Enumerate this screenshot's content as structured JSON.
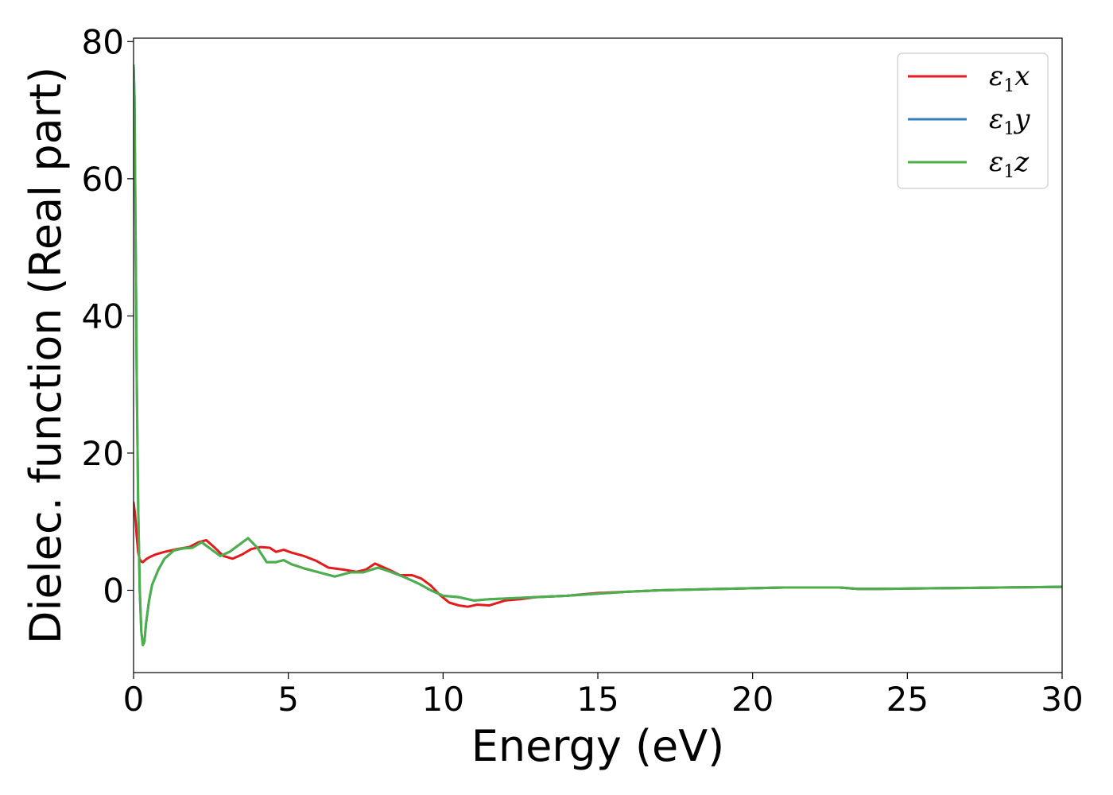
{
  "chart_data": {
    "type": "line",
    "title": "",
    "xlabel": "Energy (eV)",
    "ylabel": "Dielec. function (Real part)",
    "xlim": [
      0,
      30
    ],
    "ylim": [
      -12,
      80.5
    ],
    "xticks": [
      0,
      5,
      10,
      15,
      20,
      25,
      30
    ],
    "yticks": [
      0,
      20,
      40,
      60,
      80
    ],
    "grid": false,
    "legend_position": "top-right",
    "series": [
      {
        "name": "ε1x",
        "legend_main": "ε",
        "legend_sub": "1",
        "legend_tail": "x",
        "color": "#e41a1c",
        "x": [
          0,
          0.05,
          0.1,
          0.15,
          0.2,
          0.25,
          0.3,
          0.4,
          0.5,
          0.7,
          1.0,
          1.4,
          1.8,
          2.1,
          2.35,
          2.6,
          2.9,
          3.2,
          3.5,
          3.8,
          4.1,
          4.4,
          4.6,
          4.85,
          5.1,
          5.5,
          5.9,
          6.3,
          6.8,
          7.2,
          7.5,
          7.8,
          8.0,
          8.3,
          8.6,
          9.0,
          9.3,
          9.6,
          9.9,
          10.2,
          10.5,
          10.8,
          11.1,
          11.5,
          12.0,
          12.5,
          13.0,
          13.5,
          14.0,
          15.0,
          16.0,
          17.0,
          18.0,
          19.0,
          20.0,
          21.0,
          22.0,
          22.8,
          23.4,
          24.0,
          25.0,
          26.0,
          27.0,
          28.0,
          29.0,
          30.0
        ],
        "y": [
          12.8,
          11.0,
          8.0,
          5.5,
          4.5,
          4.2,
          4.1,
          4.5,
          4.8,
          5.2,
          5.6,
          6.0,
          6.3,
          7.0,
          7.3,
          6.3,
          5.0,
          4.6,
          5.2,
          6.0,
          6.3,
          6.2,
          5.6,
          5.9,
          5.5,
          5.0,
          4.3,
          3.3,
          3.0,
          2.7,
          3.0,
          3.9,
          3.5,
          2.9,
          2.2,
          2.2,
          1.7,
          0.7,
          -0.7,
          -1.8,
          -2.2,
          -2.4,
          -2.1,
          -2.2,
          -1.5,
          -1.3,
          -1.0,
          -0.9,
          -0.8,
          -0.4,
          -0.2,
          0.0,
          0.1,
          0.2,
          0.3,
          0.4,
          0.4,
          0.4,
          0.2,
          0.2,
          0.25,
          0.3,
          0.35,
          0.4,
          0.45,
          0.5
        ]
      },
      {
        "name": "ε1y",
        "legend_main": "ε",
        "legend_sub": "1",
        "legend_tail": "y",
        "color": "#377eb8",
        "x": [
          0,
          0.03,
          0.06,
          0.1,
          0.15,
          0.2,
          0.25,
          0.3,
          0.35,
          0.4,
          0.5,
          0.6,
          0.8,
          1.0,
          1.3,
          1.6,
          1.9,
          2.2,
          2.5,
          2.8,
          3.1,
          3.4,
          3.7,
          4.0,
          4.3,
          4.6,
          4.85,
          5.1,
          5.5,
          6.0,
          6.5,
          7.0,
          7.4,
          7.9,
          8.3,
          8.7,
          9.2,
          9.6,
          10.0,
          10.5,
          11.0,
          11.5,
          12.0,
          13.0,
          14.0,
          15.0,
          16.0,
          17.0,
          18.0,
          19.0,
          20.0,
          21.0,
          22.0,
          22.8,
          23.4,
          24.0,
          25.0,
          26.0,
          27.0,
          28.0,
          29.0,
          30.0
        ],
        "y": [
          76.5,
          72.0,
          55.0,
          32.0,
          12.0,
          0.0,
          -6.0,
          -8.0,
          -7.5,
          -5.0,
          -1.5,
          0.8,
          3.0,
          4.6,
          5.8,
          6.1,
          6.2,
          7.0,
          6.0,
          5.0,
          5.6,
          6.6,
          7.6,
          6.2,
          4.1,
          4.1,
          4.4,
          3.8,
          3.2,
          2.6,
          2.0,
          2.6,
          2.6,
          3.3,
          2.7,
          2.0,
          1.0,
          0.0,
          -0.8,
          -1.0,
          -1.5,
          -1.3,
          -1.2,
          -1.0,
          -0.8,
          -0.5,
          -0.2,
          0.0,
          0.1,
          0.2,
          0.3,
          0.4,
          0.4,
          0.4,
          0.2,
          0.2,
          0.25,
          0.3,
          0.35,
          0.4,
          0.45,
          0.5
        ]
      },
      {
        "name": "ε1z",
        "legend_main": "ε",
        "legend_sub": "1",
        "legend_tail": "z",
        "color": "#4daf4a",
        "x": [
          0,
          0.03,
          0.06,
          0.1,
          0.15,
          0.2,
          0.25,
          0.3,
          0.35,
          0.4,
          0.5,
          0.6,
          0.8,
          1.0,
          1.3,
          1.6,
          1.9,
          2.2,
          2.5,
          2.8,
          3.1,
          3.4,
          3.7,
          4.0,
          4.3,
          4.6,
          4.85,
          5.1,
          5.5,
          6.0,
          6.5,
          7.0,
          7.4,
          7.9,
          8.3,
          8.7,
          9.2,
          9.6,
          10.0,
          10.5,
          11.0,
          11.5,
          12.0,
          13.0,
          14.0,
          15.0,
          16.0,
          17.0,
          18.0,
          19.0,
          20.0,
          21.0,
          22.0,
          22.8,
          23.4,
          24.0,
          25.0,
          26.0,
          27.0,
          28.0,
          29.0,
          30.0
        ],
        "y": [
          76.5,
          72.0,
          55.0,
          32.0,
          12.0,
          0.0,
          -6.0,
          -8.0,
          -7.5,
          -5.0,
          -1.5,
          0.8,
          3.0,
          4.6,
          5.8,
          6.1,
          6.2,
          7.0,
          6.0,
          5.0,
          5.6,
          6.6,
          7.6,
          6.2,
          4.1,
          4.1,
          4.4,
          3.8,
          3.2,
          2.6,
          2.0,
          2.6,
          2.6,
          3.3,
          2.7,
          2.0,
          1.0,
          0.0,
          -0.8,
          -1.0,
          -1.5,
          -1.3,
          -1.2,
          -1.0,
          -0.8,
          -0.5,
          -0.2,
          0.0,
          0.1,
          0.2,
          0.3,
          0.4,
          0.4,
          0.4,
          0.2,
          0.2,
          0.25,
          0.3,
          0.35,
          0.4,
          0.45,
          0.5
        ]
      }
    ]
  }
}
